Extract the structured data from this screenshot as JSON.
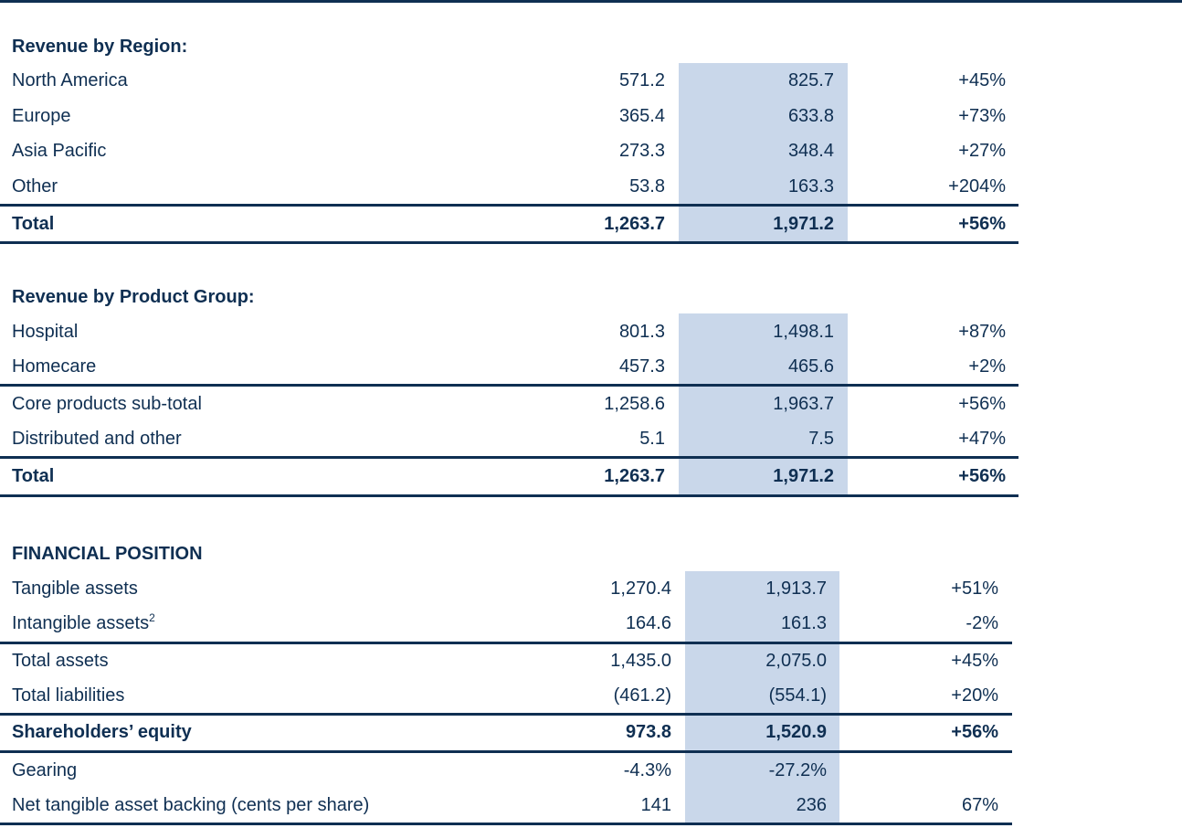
{
  "sections": [
    {
      "title": "Revenue by Region:",
      "rows": [
        {
          "label": "North America",
          "cells": [
            "571.2",
            "825.7",
            "+45%"
          ]
        },
        {
          "label": "Europe",
          "cells": [
            "365.4",
            "633.8",
            "+73%"
          ]
        },
        {
          "label": "Asia Pacific",
          "cells": [
            "273.3",
            "348.4",
            "+27%"
          ]
        },
        {
          "label": "Other",
          "cells": [
            "53.8",
            "163.3",
            "+204%"
          ]
        },
        {
          "label": "Total",
          "cells": [
            "1,263.7",
            "1,971.2",
            "+56%"
          ]
        }
      ]
    },
    {
      "title": "Revenue by Product Group:",
      "rows": [
        {
          "label": "Hospital",
          "cells": [
            "801.3",
            "1,498.1",
            "+87%"
          ]
        },
        {
          "label": "Homecare",
          "cells": [
            "457.3",
            "465.6",
            "+2%"
          ]
        },
        {
          "label": "Core products sub-total",
          "cells": [
            "1,258.6",
            "1,963.7",
            "+56%"
          ]
        },
        {
          "label": "Distributed and other",
          "cells": [
            "5.1",
            "7.5",
            "+47%"
          ]
        },
        {
          "label": "Total",
          "cells": [
            "1,263.7",
            "1,971.2",
            "+56%"
          ]
        }
      ]
    },
    {
      "title": "FINANCIAL POSITION",
      "rows": [
        {
          "label": "Tangible assets",
          "cells": [
            "1,270.4",
            "1,913.7",
            "+51%"
          ]
        },
        {
          "label": "Intangible assets",
          "footnote": "2",
          "cells": [
            "164.6",
            "161.3",
            "-2%"
          ]
        },
        {
          "label": "Total assets",
          "cells": [
            "1,435.0",
            "2,075.0",
            "+45%"
          ]
        },
        {
          "label": "Total liabilities",
          "cells": [
            "(461.2)",
            "(554.1)",
            "+20%"
          ]
        },
        {
          "label": "Shareholders’ equity",
          "cells": [
            "973.8",
            "1,520.9",
            "+56%"
          ]
        },
        {
          "label": "Gearing",
          "cells": [
            "-4.3%",
            "-27.2%"
          ]
        },
        {
          "label": "Net tangible asset backing (cents per share)",
          "cells": [
            "141",
            "236",
            "67%"
          ]
        }
      ]
    }
  ]
}
